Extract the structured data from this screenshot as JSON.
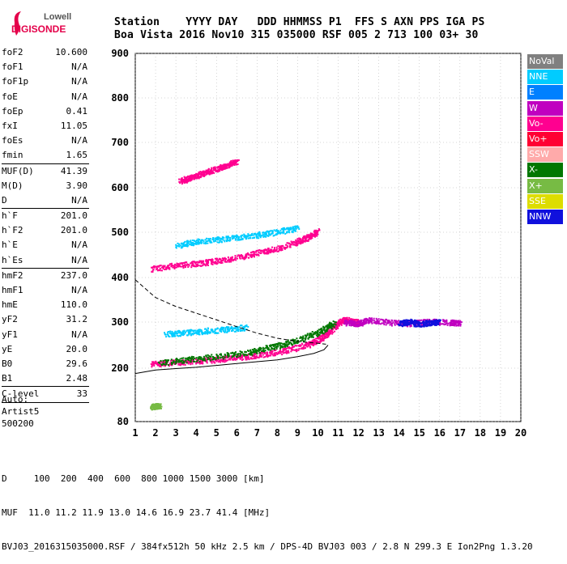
{
  "logo": {
    "line1": "Lowell",
    "line2": "DIGISONDE"
  },
  "header": {
    "line1": "Station    YYYY DAY   DDD HHMMSS P1  FFS S AXN PPS IGA PS",
    "line2": "Boa Vista 2016 Nov10 315 035000 RSF 005 2 713 100 03+ 30"
  },
  "params": [
    {
      "label": "foF2",
      "value": "10.600"
    },
    {
      "label": "foF1",
      "value": "N/A"
    },
    {
      "label": "foF1p",
      "value": "N/A"
    },
    {
      "label": "foE",
      "value": "N/A"
    },
    {
      "label": "foEp",
      "value": "0.41"
    },
    {
      "label": "fxI",
      "value": "11.05"
    },
    {
      "label": "foEs",
      "value": "N/A"
    },
    {
      "label": "fmin",
      "value": "1.65"
    },
    {
      "sep": true
    },
    {
      "label": "MUF(D)",
      "value": "41.39"
    },
    {
      "label": "M(D)",
      "value": "3.90"
    },
    {
      "label": "D",
      "value": "N/A"
    },
    {
      "sep": true
    },
    {
      "label": "h`F",
      "value": "201.0"
    },
    {
      "label": "h`F2",
      "value": "201.0"
    },
    {
      "label": "h`E",
      "value": "N/A"
    },
    {
      "label": "h`Es",
      "value": "N/A"
    },
    {
      "sep": true
    },
    {
      "label": "hmF2",
      "value": "237.0"
    },
    {
      "label": "hmF1",
      "value": "N/A"
    },
    {
      "label": "hmE",
      "value": "110.0"
    },
    {
      "label": "yF2",
      "value": "31.2"
    },
    {
      "label": "yF1",
      "value": "N/A"
    },
    {
      "label": "yE",
      "value": "20.0"
    },
    {
      "label": "B0",
      "value": "29.6"
    },
    {
      "label": "B1",
      "value": "2.48"
    },
    {
      "sep": true
    },
    {
      "label": "C-level",
      "value": "33"
    },
    {
      "sep": true
    }
  ],
  "auto": {
    "line1": "Auto:",
    "line2": "Artist5",
    "line3": "500200"
  },
  "legend": [
    {
      "label": "NoVal",
      "color": "#808080"
    },
    {
      "label": "NNE",
      "color": "#00ccff"
    },
    {
      "label": "E",
      "color": "#0080ff"
    },
    {
      "label": "W",
      "color": "#c000c0"
    },
    {
      "label": "Vo-",
      "color": "#ff0090"
    },
    {
      "label": "Vo+",
      "color": "#ff0033"
    },
    {
      "label": "SSW",
      "color": "#ffaaaa"
    },
    {
      "label": "X-",
      "color": "#007700"
    },
    {
      "label": "X+",
      "color": "#77bb44"
    },
    {
      "label": "SSE",
      "color": "#dddd00"
    },
    {
      "label": "NNW",
      "color": "#1010dd"
    }
  ],
  "footer": {
    "line1": "D     100  200  400  600  800 1000 1500 3000 [km]",
    "line2": "MUF  11.0 11.2 11.9 13.0 14.6 16.9 23.7 41.4 [MHz]",
    "line3": "BVJ03_2016315035000.RSF / 384fx512h 50 kHz 2.5 km / DPS-4D BVJ03 003 / 2.8 N 299.3 E Ion2Png 1.3.20"
  },
  "chart_data": {
    "type": "scatter",
    "xlim": [
      1,
      20
    ],
    "ylim": [
      80,
      900
    ],
    "x_ticks": [
      1,
      2,
      3,
      4,
      5,
      6,
      7,
      8,
      9,
      10,
      11,
      12,
      13,
      14,
      15,
      16,
      17,
      18,
      19,
      20
    ],
    "y_ticks": [
      80,
      200,
      300,
      400,
      500,
      600,
      700,
      800,
      900
    ],
    "grid": true,
    "traces": [
      {
        "name": "O-trace F2",
        "color": "#ff0090",
        "x": [
          1.8,
          2.5,
          3.5,
          4.5,
          5.5,
          6.5,
          7.5,
          8.5,
          9.5,
          10.0,
          10.4,
          10.8,
          11.2,
          11.6,
          12.0
        ],
        "y": [
          210,
          212,
          215,
          218,
          222,
          226,
          232,
          240,
          252,
          262,
          275,
          290,
          305,
          305,
          300
        ]
      },
      {
        "name": "X-trace F2",
        "color": "#007700",
        "x": [
          2.2,
          3.5,
          5.0,
          6.5,
          7.5,
          8.5,
          9.5,
          10.3,
          10.8
        ],
        "y": [
          213,
          219,
          226,
          235,
          245,
          255,
          270,
          285,
          300
        ]
      },
      {
        "name": "spread F",
        "color": "#c000c0",
        "x": [
          11.3,
          12.0,
          12.5,
          13.5,
          14.5,
          15.5,
          16.5,
          17.0
        ],
        "y": [
          300,
          298,
          305,
          300,
          298,
          302,
          300,
          299
        ]
      },
      {
        "name": "spread F E",
        "color": "#1010dd",
        "x": [
          14.0,
          14.5,
          15.0,
          15.5,
          16.0
        ],
        "y": [
          298,
          302,
          296,
          300,
          301
        ]
      },
      {
        "name": "2nd hop",
        "color": "#ff0090",
        "x": [
          1.8,
          3.0,
          4.0,
          5.0,
          6.0,
          7.0,
          8.0,
          9.0,
          9.5,
          10.0
        ],
        "y": [
          420,
          428,
          432,
          438,
          445,
          455,
          465,
          480,
          490,
          505
        ]
      },
      {
        "name": "2nd hop NNE",
        "color": "#00ccff",
        "x": [
          3.0,
          4.0,
          5.0,
          6.0,
          7.0,
          8.0,
          9.0
        ],
        "y": [
          472,
          480,
          485,
          490,
          495,
          502,
          510
        ]
      },
      {
        "name": "3rd hop",
        "color": "#ff0090",
        "x": [
          3.2,
          3.6,
          4.0,
          4.5,
          5.0,
          5.5,
          6.0
        ],
        "y": [
          615,
          622,
          628,
          636,
          643,
          650,
          660
        ]
      },
      {
        "name": "oblique",
        "color": "#00ccff",
        "x": [
          2.5,
          3.5,
          4.5,
          5.5,
          6.5
        ],
        "y": [
          275,
          278,
          282,
          285,
          290
        ]
      },
      {
        "name": "E low",
        "color": "#77bb44",
        "x": [
          1.8,
          2.0,
          2.2
        ],
        "y": [
          114,
          116,
          115
        ]
      }
    ],
    "profile_curve": {
      "x": [
        1.0,
        2.0,
        3.0,
        4.0,
        5.0,
        6.0,
        7.0,
        8.0,
        9.0,
        9.8,
        10.3,
        10.5
      ],
      "y": [
        188,
        196,
        199,
        202,
        206,
        210,
        214,
        218,
        225,
        232,
        240,
        250
      ]
    },
    "profile_dashed": {
      "x": [
        1.0,
        2.0,
        3.0,
        4.0,
        5.0,
        6.0,
        7.0,
        8.0,
        9.0,
        10.0,
        10.4
      ],
      "y": [
        395,
        355,
        335,
        320,
        305,
        290,
        276,
        265,
        258,
        254,
        252
      ]
    }
  }
}
